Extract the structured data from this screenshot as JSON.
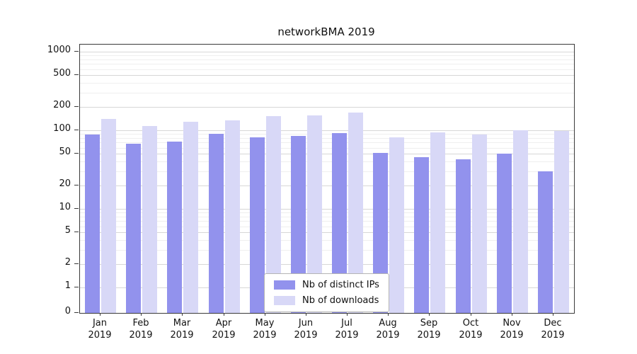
{
  "chart_data": {
    "type": "bar",
    "title": "networkBMA 2019",
    "year": "2019",
    "categories": [
      "Jan",
      "Feb",
      "Mar",
      "Apr",
      "May",
      "Jun",
      "Jul",
      "Aug",
      "Sep",
      "Oct",
      "Nov",
      "Dec"
    ],
    "series": [
      {
        "name": "Nb of distinct IPs",
        "color": "#9292ed",
        "values": [
          88,
          68,
          72,
          90,
          82,
          84,
          92,
          51,
          45,
          43,
          50,
          30
        ]
      },
      {
        "name": "Nb of downloads",
        "color": "#d8d8f7",
        "values": [
          140,
          113,
          128,
          135,
          152,
          155,
          168,
          82,
          93,
          88,
          99,
          97
        ]
      }
    ],
    "yticks": [
      0,
      1,
      2,
      5,
      10,
      20,
      50,
      100,
      200,
      500,
      1000
    ],
    "ylim": [
      0,
      1000
    ],
    "yscale": "symlog",
    "grid": true,
    "legend_position": "lower center",
    "colors": {
      "grid_major": "#d7d7d7",
      "grid_minor": "#efefef",
      "axis": "#3a3a3a",
      "background": "#ffffff"
    }
  }
}
